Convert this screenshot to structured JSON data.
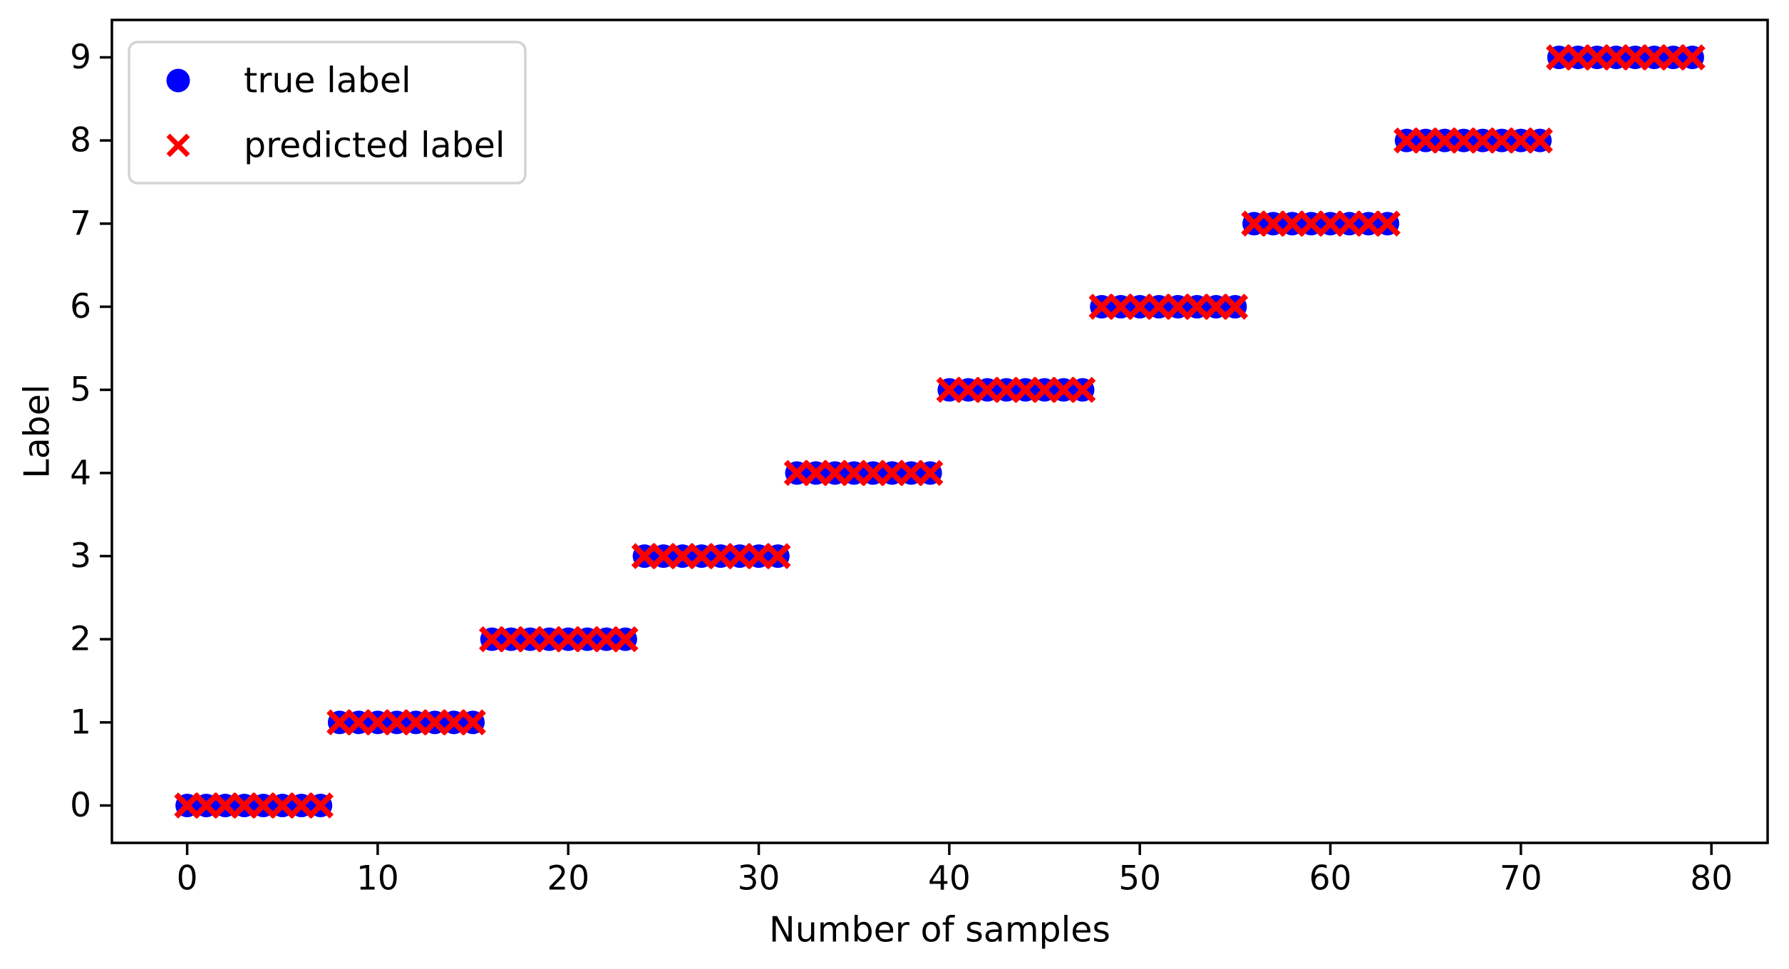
{
  "figure": {
    "background": "#ffffff"
  },
  "chart_data": {
    "type": "scatter",
    "title": "",
    "xlabel": "Number of samples",
    "ylabel": "Label",
    "xlim": [
      -3.95,
      82.95
    ],
    "ylim": [
      -0.45,
      9.45
    ],
    "xticks": [
      0,
      10,
      20,
      30,
      40,
      50,
      60,
      70,
      80
    ],
    "yticks": [
      0,
      1,
      2,
      3,
      4,
      5,
      6,
      7,
      8,
      9
    ],
    "grid": false,
    "legend_position": "upper left",
    "x": [
      0,
      1,
      2,
      3,
      4,
      5,
      6,
      7,
      8,
      9,
      10,
      11,
      12,
      13,
      14,
      15,
      16,
      17,
      18,
      19,
      20,
      21,
      22,
      23,
      24,
      25,
      26,
      27,
      28,
      29,
      30,
      31,
      32,
      33,
      34,
      35,
      36,
      37,
      38,
      39,
      40,
      41,
      42,
      43,
      44,
      45,
      46,
      47,
      48,
      49,
      50,
      51,
      52,
      53,
      54,
      55,
      56,
      57,
      58,
      59,
      60,
      61,
      62,
      63,
      64,
      65,
      66,
      67,
      68,
      69,
      70,
      71,
      72,
      73,
      74,
      75,
      76,
      77,
      78,
      79
    ],
    "series": [
      {
        "name": "true label",
        "marker": "circle",
        "color": "#0000ff",
        "y": [
          0,
          0,
          0,
          0,
          0,
          0,
          0,
          0,
          1,
          1,
          1,
          1,
          1,
          1,
          1,
          1,
          2,
          2,
          2,
          2,
          2,
          2,
          2,
          2,
          3,
          3,
          3,
          3,
          3,
          3,
          3,
          3,
          4,
          4,
          4,
          4,
          4,
          4,
          4,
          4,
          5,
          5,
          5,
          5,
          5,
          5,
          5,
          5,
          6,
          6,
          6,
          6,
          6,
          6,
          6,
          6,
          7,
          7,
          7,
          7,
          7,
          7,
          7,
          7,
          8,
          8,
          8,
          8,
          8,
          8,
          8,
          8,
          9,
          9,
          9,
          9,
          9,
          9,
          9,
          9
        ]
      },
      {
        "name": "predicted label",
        "marker": "x",
        "color": "#ff0000",
        "y": [
          0,
          0,
          0,
          0,
          0,
          0,
          0,
          0,
          1,
          1,
          1,
          1,
          1,
          1,
          1,
          1,
          2,
          2,
          2,
          2,
          2,
          2,
          2,
          2,
          3,
          3,
          3,
          3,
          3,
          3,
          3,
          3,
          4,
          4,
          4,
          4,
          4,
          4,
          4,
          4,
          5,
          5,
          5,
          5,
          5,
          5,
          5,
          5,
          6,
          6,
          6,
          6,
          6,
          6,
          6,
          6,
          7,
          7,
          7,
          7,
          7,
          7,
          7,
          7,
          8,
          8,
          8,
          8,
          8,
          8,
          8,
          8,
          9,
          9,
          9,
          9,
          9,
          9,
          9,
          9
        ]
      }
    ],
    "colors": {
      "true_label": "#0000ff",
      "predicted_label": "#ff0000",
      "axes": "#000000",
      "legend_border": "#d3d3d3"
    }
  }
}
